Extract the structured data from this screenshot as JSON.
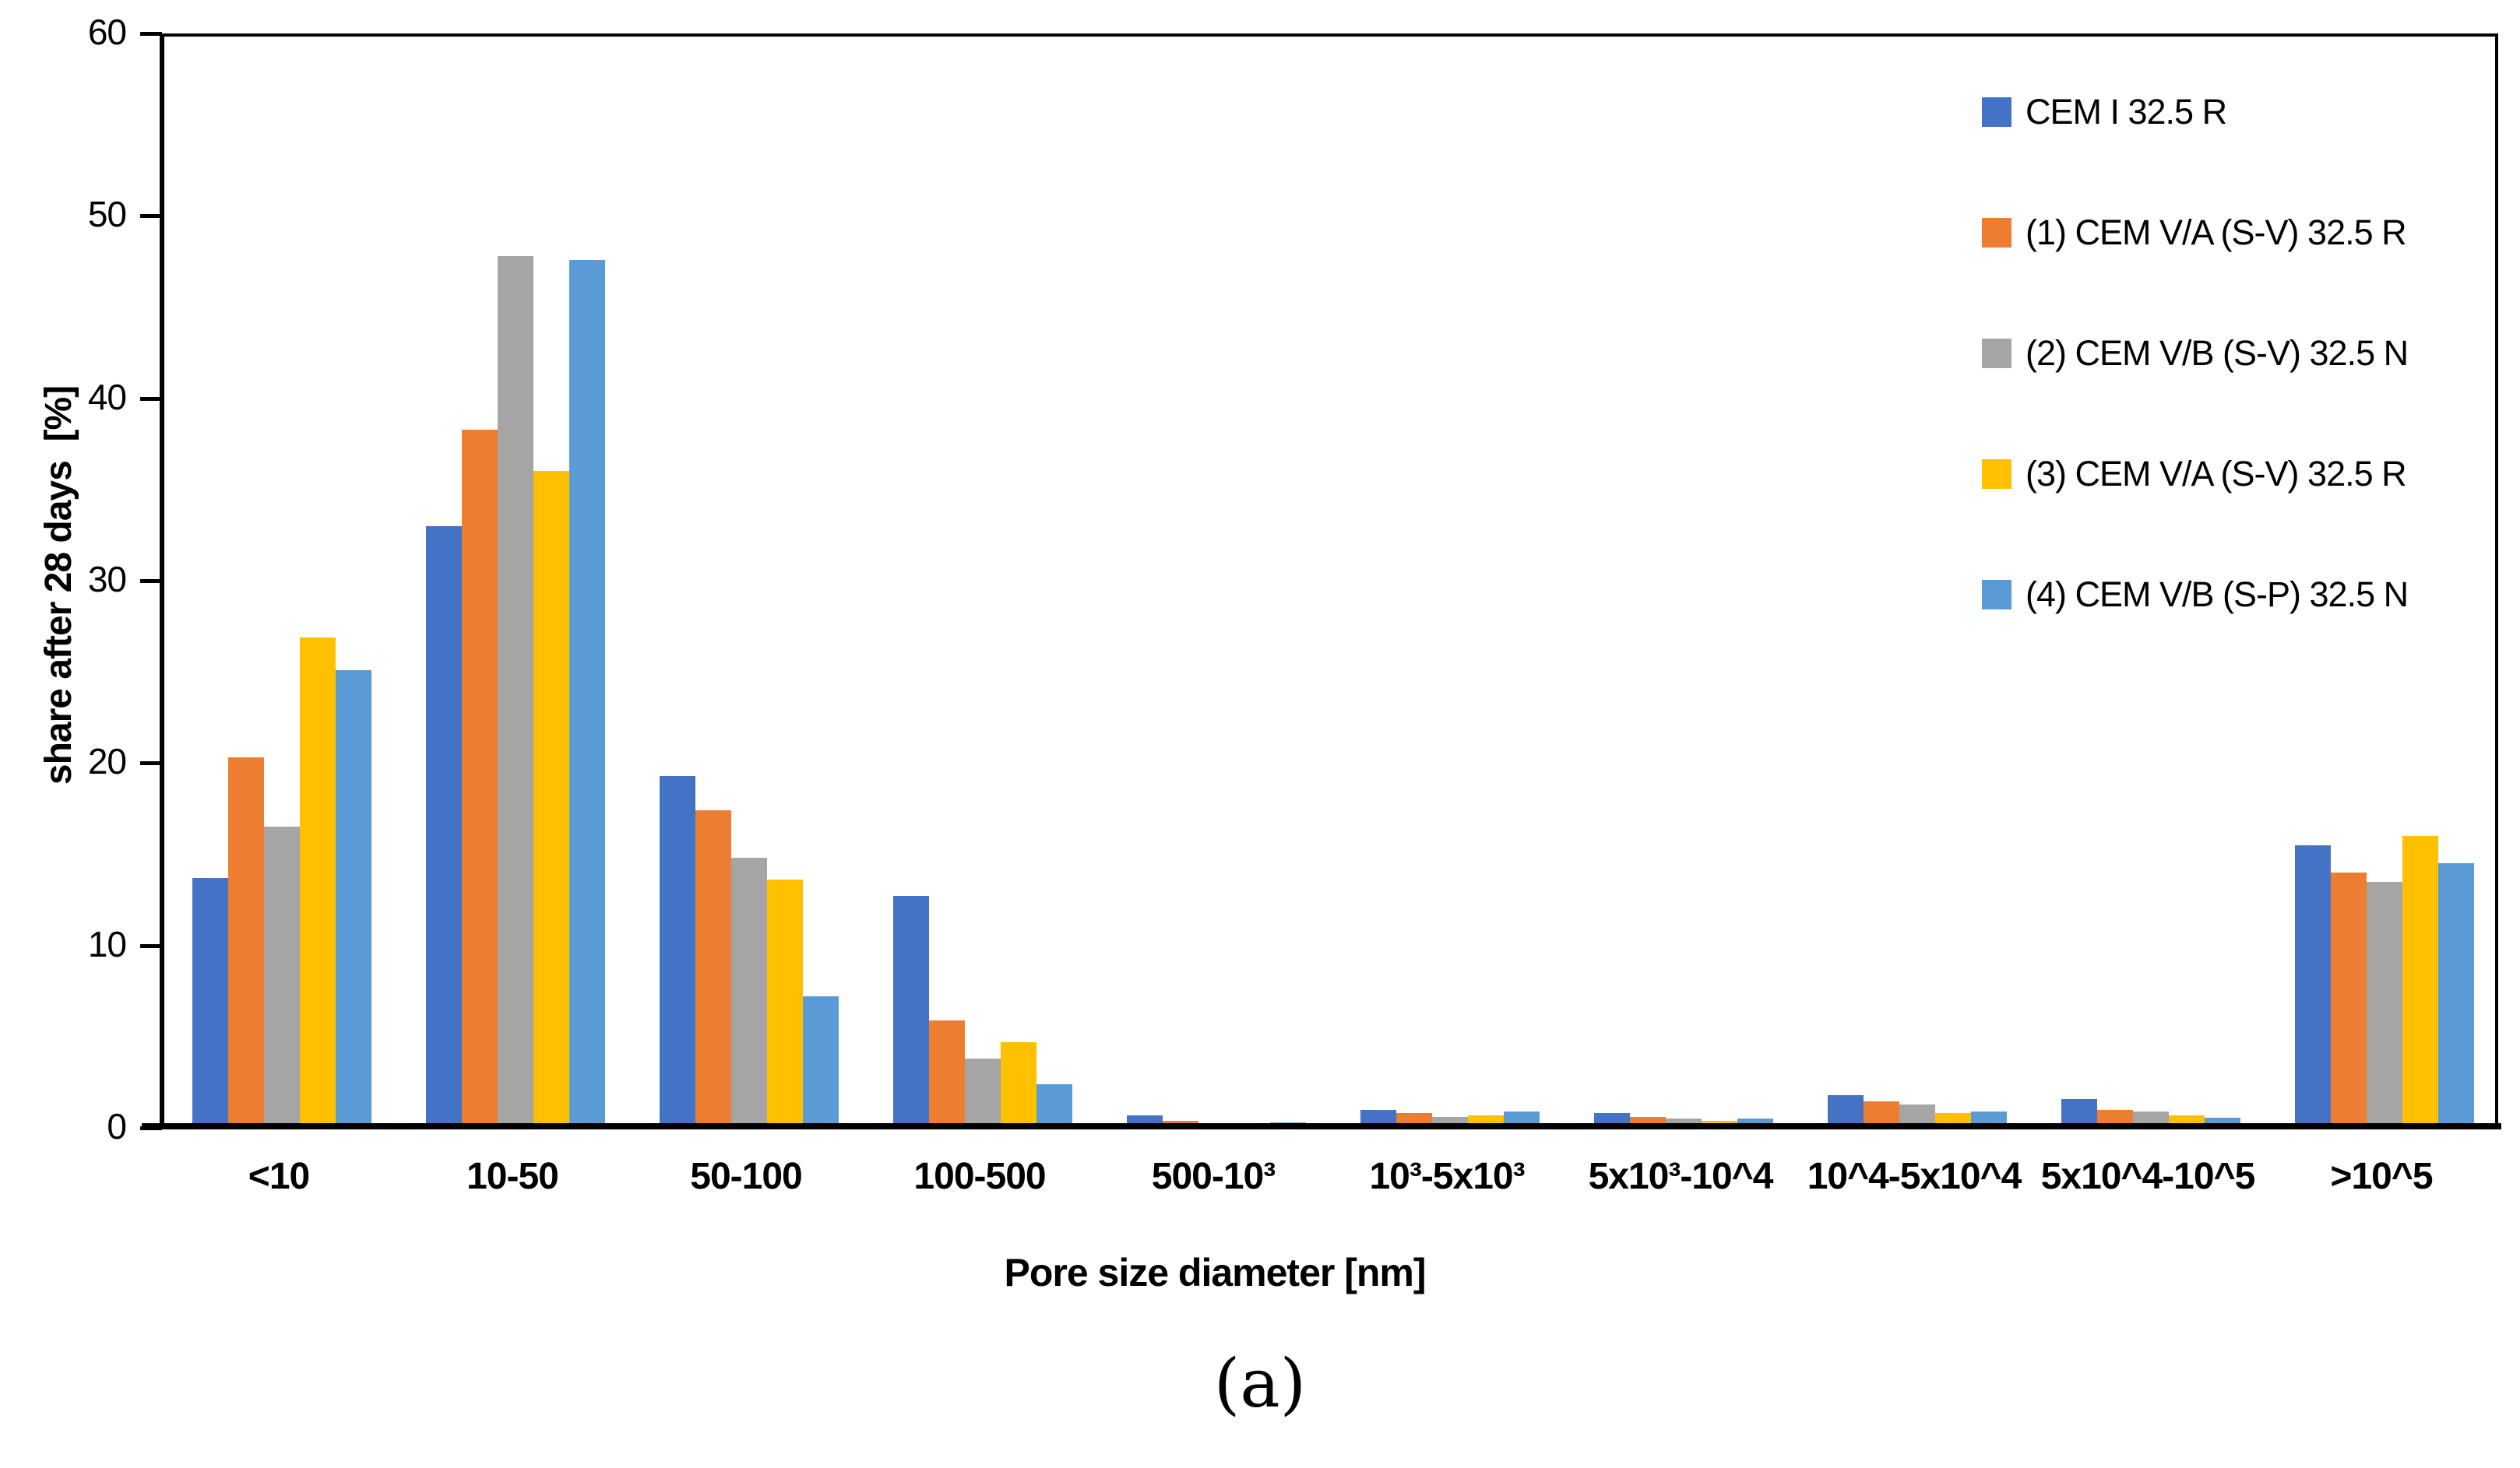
{
  "caption": "(a)",
  "chart_data": {
    "type": "bar",
    "title": "",
    "xlabel": "Pore size diameter [nm]",
    "ylabel": "share after 28 days  [%]",
    "ylim": [
      0,
      60
    ],
    "yticks": [
      0,
      10,
      20,
      30,
      40,
      50,
      60
    ],
    "grid": false,
    "legend_position": "upper-right-inside",
    "categories": [
      "<10",
      "10-50",
      "50-100",
      "100-500",
      "500-10³",
      "10³-5x10³",
      "5x10³-10^4",
      "10^4-5x10^4",
      "5x10^4-10^5",
      ">10^5"
    ],
    "series": [
      {
        "name": "CEM I 32.5 R",
        "color": "#4472C4",
        "values": [
          13.7,
          33.0,
          19.3,
          12.7,
          0.7,
          1.0,
          0.8,
          1.8,
          1.6,
          15.5
        ]
      },
      {
        "name": "(1) CEM V/A (S-V) 32.5 R",
        "color": "#ED7D31",
        "values": [
          20.3,
          38.3,
          17.4,
          5.9,
          0.4,
          0.8,
          0.6,
          1.45,
          1.0,
          14.0
        ]
      },
      {
        "name": "(2) CEM V/B (S-V) 32.5 N",
        "color": "#A5A5A5",
        "values": [
          16.5,
          47.8,
          14.8,
          3.8,
          0.2,
          0.6,
          0.5,
          1.3,
          0.9,
          13.5
        ]
      },
      {
        "name": "(3) CEM V/A (S-V) 32.5 R",
        "color": "#FFC000",
        "values": [
          26.9,
          36.0,
          13.6,
          4.7,
          0.2,
          0.7,
          0.4,
          0.8,
          0.7,
          16.0
        ]
      },
      {
        "name": "(4) CEM V/B (S-P) 32.5 N",
        "color": "#5B9BD5",
        "values": [
          25.1,
          47.6,
          7.2,
          2.4,
          0.3,
          0.9,
          0.5,
          0.9,
          0.55,
          14.5
        ]
      }
    ]
  }
}
